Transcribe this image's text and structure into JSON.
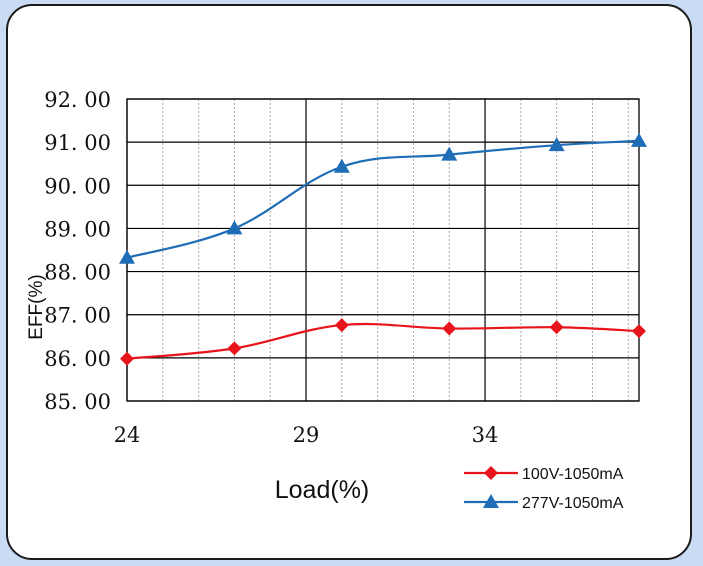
{
  "chart_data": {
    "type": "line",
    "xlabel": "Load(%)",
    "ylabel": "EFF(%)",
    "xlim": [
      24,
      38.3
    ],
    "ylim": [
      85,
      92
    ],
    "x_ticks": [
      "24",
      "29",
      "34"
    ],
    "y_ticks": [
      "92. 00",
      "91. 00",
      "90. 00",
      "89. 00",
      "88. 00",
      "87. 00",
      "86. 00",
      "85. 00"
    ],
    "grid": true,
    "legend_position": "bottom-right",
    "series": [
      {
        "name": "100V-1050mA",
        "color": "#e8141b",
        "marker": "diamond",
        "x": [
          24,
          27,
          30,
          33,
          36,
          38.3
        ],
        "y": [
          85.98,
          86.22,
          86.76,
          86.68,
          86.71,
          86.62
        ]
      },
      {
        "name": "277V-1050mA",
        "color": "#1f6db6",
        "marker": "triangle",
        "x": [
          24,
          27,
          30,
          33,
          36,
          38.3
        ],
        "y": [
          88.32,
          89.0,
          90.43,
          90.71,
          90.93,
          91.03
        ]
      }
    ]
  }
}
